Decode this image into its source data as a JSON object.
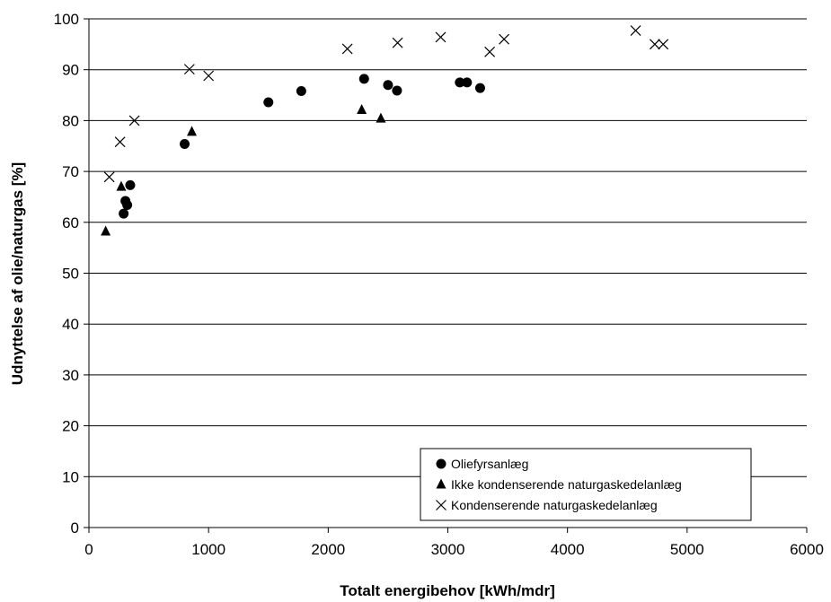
{
  "chart_data": {
    "type": "scatter",
    "title": "",
    "xlabel": "Totalt energibehov  [kWh/mdr]",
    "ylabel": "Udnyttelse af olie/naturgas [%]",
    "xlim": [
      0,
      6000
    ],
    "ylim": [
      0,
      100
    ],
    "x_ticks": [
      0,
      1000,
      2000,
      3000,
      4000,
      5000,
      6000
    ],
    "y_ticks": [
      0,
      10,
      20,
      30,
      40,
      50,
      60,
      70,
      80,
      90,
      100
    ],
    "grid": "horizontal",
    "legend_position": "bottom-right",
    "series": [
      {
        "name": "Oliefyrsanlæg",
        "marker": "circle",
        "color": "#000000",
        "points": [
          {
            "x": 290,
            "y": 61.7
          },
          {
            "x": 305,
            "y": 64.2
          },
          {
            "x": 320,
            "y": 63.4
          },
          {
            "x": 345,
            "y": 67.3
          },
          {
            "x": 800,
            "y": 75.4
          },
          {
            "x": 1500,
            "y": 83.6
          },
          {
            "x": 1775,
            "y": 85.8
          },
          {
            "x": 2300,
            "y": 88.2
          },
          {
            "x": 2500,
            "y": 87.0
          },
          {
            "x": 2575,
            "y": 85.9
          },
          {
            "x": 3100,
            "y": 87.5
          },
          {
            "x": 3160,
            "y": 87.5
          },
          {
            "x": 3270,
            "y": 86.4
          }
        ]
      },
      {
        "name": "Ikke kondenserende naturgaskedelanlæg",
        "marker": "triangle",
        "color": "#000000",
        "points": [
          {
            "x": 140,
            "y": 58.2
          },
          {
            "x": 270,
            "y": 67.0
          },
          {
            "x": 860,
            "y": 77.8
          },
          {
            "x": 2280,
            "y": 82.1
          },
          {
            "x": 2440,
            "y": 80.4
          }
        ]
      },
      {
        "name": "Kondenserende naturgaskedelanlæg",
        "marker": "x",
        "color": "#000000",
        "points": [
          {
            "x": 170,
            "y": 68.9
          },
          {
            "x": 260,
            "y": 75.8
          },
          {
            "x": 380,
            "y": 80.0
          },
          {
            "x": 840,
            "y": 90.1
          },
          {
            "x": 1000,
            "y": 88.8
          },
          {
            "x": 2160,
            "y": 94.1
          },
          {
            "x": 2580,
            "y": 95.3
          },
          {
            "x": 2940,
            "y": 96.4
          },
          {
            "x": 3350,
            "y": 93.5
          },
          {
            "x": 3470,
            "y": 96.0
          },
          {
            "x": 4570,
            "y": 97.7
          },
          {
            "x": 4730,
            "y": 95.0
          },
          {
            "x": 4800,
            "y": 95.0
          }
        ]
      }
    ]
  }
}
